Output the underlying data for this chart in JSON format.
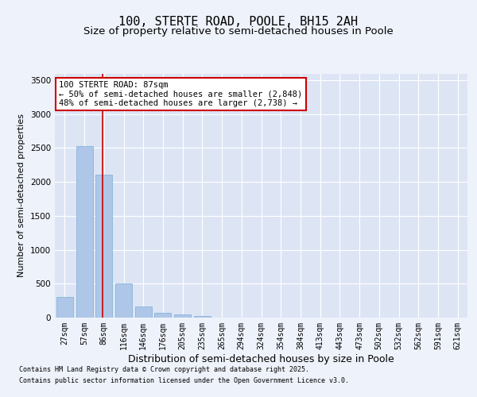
{
  "title": "100, STERTE ROAD, POOLE, BH15 2AH",
  "subtitle": "Size of property relative to semi-detached houses in Poole",
  "xlabel": "Distribution of semi-detached houses by size in Poole",
  "ylabel": "Number of semi-detached properties",
  "categories": [
    "27sqm",
    "57sqm",
    "86sqm",
    "116sqm",
    "146sqm",
    "176sqm",
    "205sqm",
    "235sqm",
    "265sqm",
    "294sqm",
    "324sqm",
    "354sqm",
    "384sqm",
    "413sqm",
    "443sqm",
    "473sqm",
    "502sqm",
    "532sqm",
    "562sqm",
    "591sqm",
    "621sqm"
  ],
  "values": [
    305,
    2530,
    2110,
    505,
    160,
    75,
    48,
    20,
    3,
    0,
    0,
    0,
    0,
    0,
    0,
    0,
    0,
    0,
    0,
    0,
    0
  ],
  "bar_color": "#aec6e8",
  "bar_edge_color": "#7bafd4",
  "vline_x": 2,
  "vline_color": "#cc0000",
  "annotation_title": "100 STERTE ROAD: 87sqm",
  "annotation_line1": "← 50% of semi-detached houses are smaller (2,848)",
  "annotation_line2": "48% of semi-detached houses are larger (2,738) →",
  "annotation_box_color": "#cc0000",
  "ylim": [
    0,
    3600
  ],
  "yticks": [
    0,
    500,
    1000,
    1500,
    2000,
    2500,
    3000,
    3500
  ],
  "bg_color": "#eef2fb",
  "plot_bg_color": "#dde5f5",
  "grid_color": "#ffffff",
  "footer_line1": "Contains HM Land Registry data © Crown copyright and database right 2025.",
  "footer_line2": "Contains public sector information licensed under the Open Government Licence v3.0.",
  "title_fontsize": 11,
  "subtitle_fontsize": 9.5,
  "tick_fontsize": 7,
  "ylabel_fontsize": 8,
  "xlabel_fontsize": 9,
  "annotation_fontsize": 7.5,
  "footer_fontsize": 6
}
